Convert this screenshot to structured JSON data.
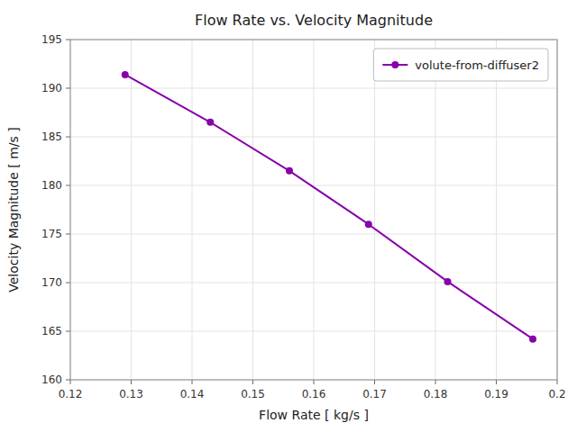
{
  "chart_data": {
    "type": "line",
    "title": "Flow Rate vs. Velocity Magnitude",
    "xlabel": "Flow Rate [ kg/s ]",
    "ylabel": "Velocity Magnitude [ m/s ]",
    "x": [
      0.129,
      0.143,
      0.156,
      0.169,
      0.182,
      0.196
    ],
    "series": [
      {
        "name": "volute-from-diffuser2",
        "color": "#8800aa",
        "marker": "circle",
        "values": [
          191.4,
          186.5,
          181.5,
          176.0,
          170.1,
          164.2
        ]
      }
    ],
    "xlim": [
      0.12,
      0.2
    ],
    "ylim": [
      160,
      195
    ],
    "xticks": [
      0.12,
      0.13,
      0.14,
      0.15,
      0.16,
      0.17,
      0.18,
      0.19,
      0.2
    ],
    "yticks": [
      160,
      165,
      170,
      175,
      180,
      185,
      190,
      195
    ],
    "grid": true,
    "legend": "upper right"
  }
}
